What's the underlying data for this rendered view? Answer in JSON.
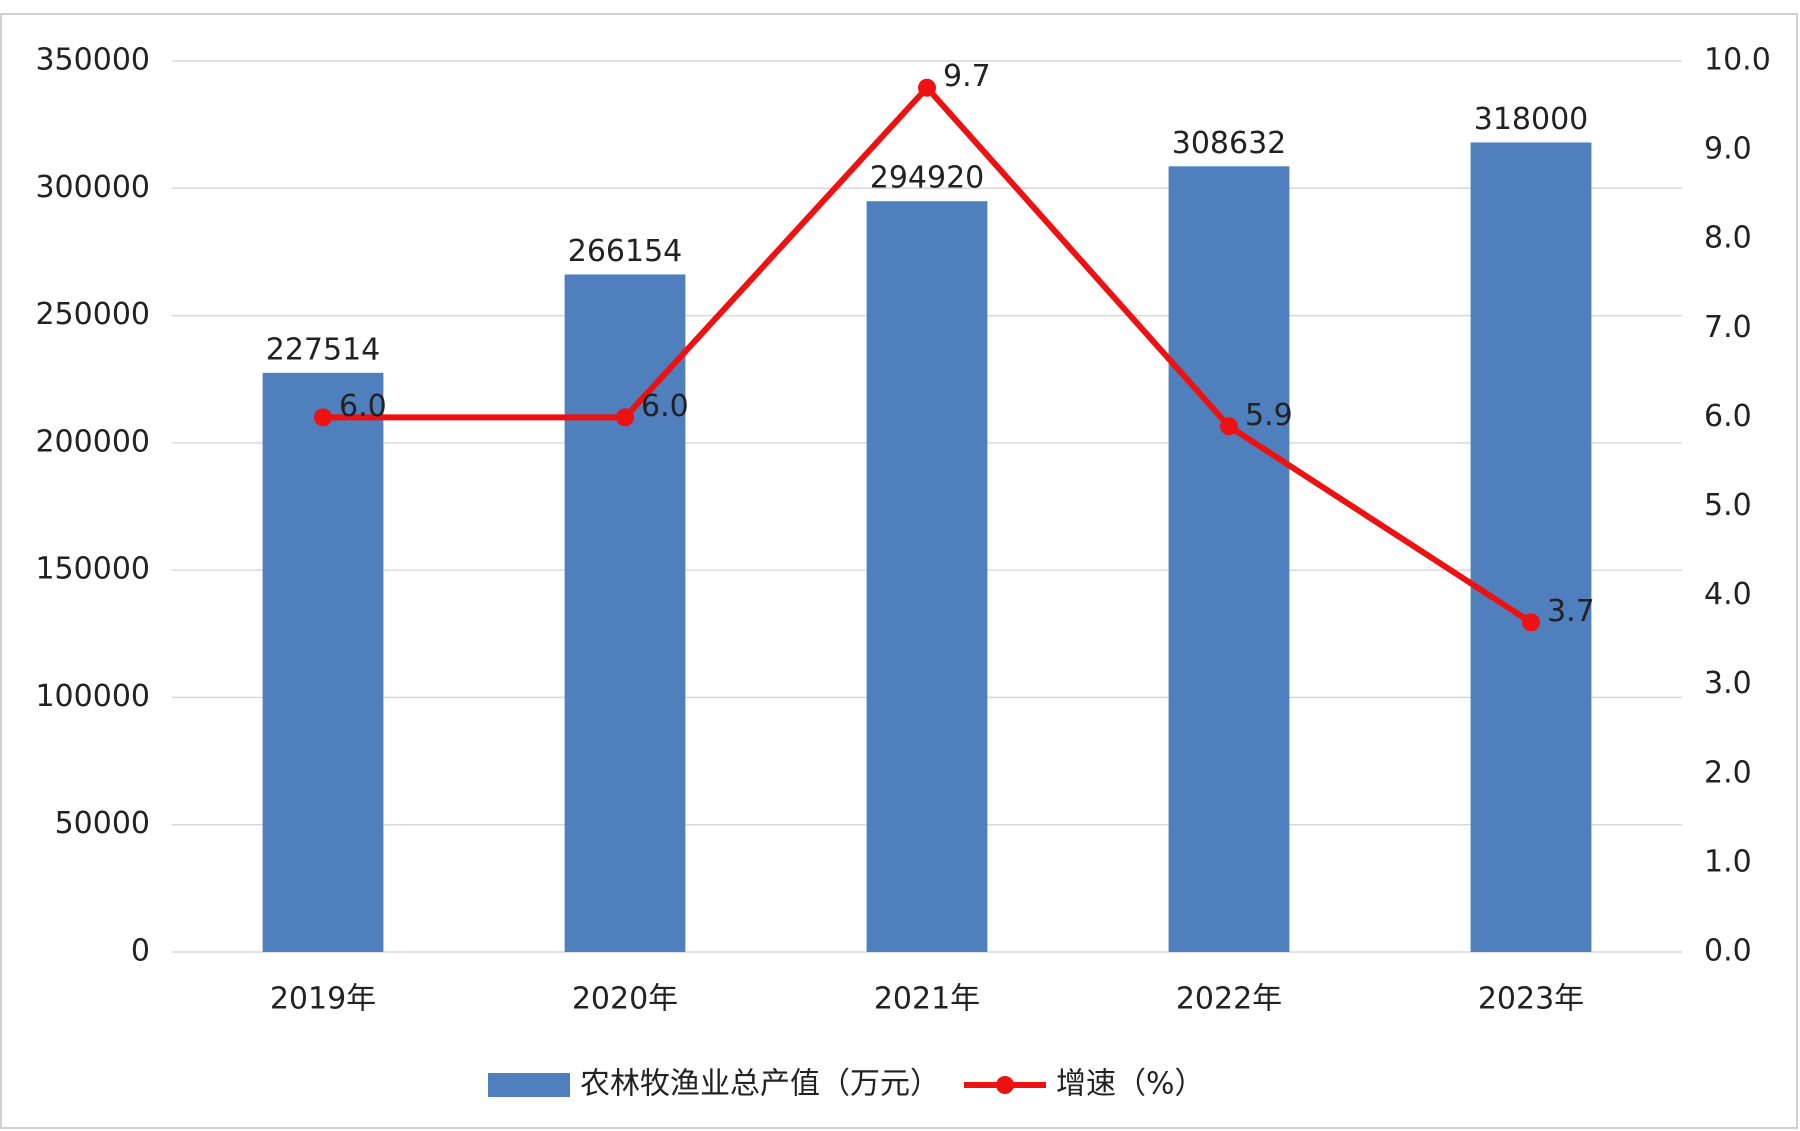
{
  "chart_data": {
    "type": "bar_line",
    "categories": [
      "2019年",
      "2020年",
      "2021年",
      "2022年",
      "2023年"
    ],
    "series": [
      {
        "name": "农林牧渔业总产值（万元）",
        "type": "bar",
        "color": "#4f7fbd",
        "values": [
          227514,
          266154,
          294920,
          308632,
          318000
        ]
      },
      {
        "name": "增速（%）",
        "type": "line",
        "axis": "y2",
        "color": "#ee1111",
        "values": [
          6,
          6,
          9.7,
          5.9,
          3.7
        ],
        "value_labels": [
          "6.0",
          "6.0",
          "9.7",
          "5.9",
          "3.7"
        ]
      }
    ],
    "ylim": [
      0,
      350000
    ],
    "yticks": [
      0,
      50000,
      100000,
      150000,
      200000,
      250000,
      300000,
      350000
    ],
    "y2lim": [
      0,
      10
    ],
    "y2ticks": [
      {
        "value": 0,
        "label": "0.0"
      },
      {
        "value": 1,
        "label": "1.0"
      },
      {
        "value": 2,
        "label": "2.0"
      },
      {
        "value": 3,
        "label": "3.0"
      },
      {
        "value": 4,
        "label": "4.0"
      },
      {
        "value": 5,
        "label": "5.0"
      },
      {
        "value": 6,
        "label": "6.0"
      },
      {
        "value": 7,
        "label": "7.0"
      },
      {
        "value": 8,
        "label": "8.0"
      },
      {
        "value": 9,
        "label": "9.0"
      },
      {
        "value": 10,
        "label": "10.0"
      }
    ],
    "grid": true,
    "legend": "bottom"
  }
}
